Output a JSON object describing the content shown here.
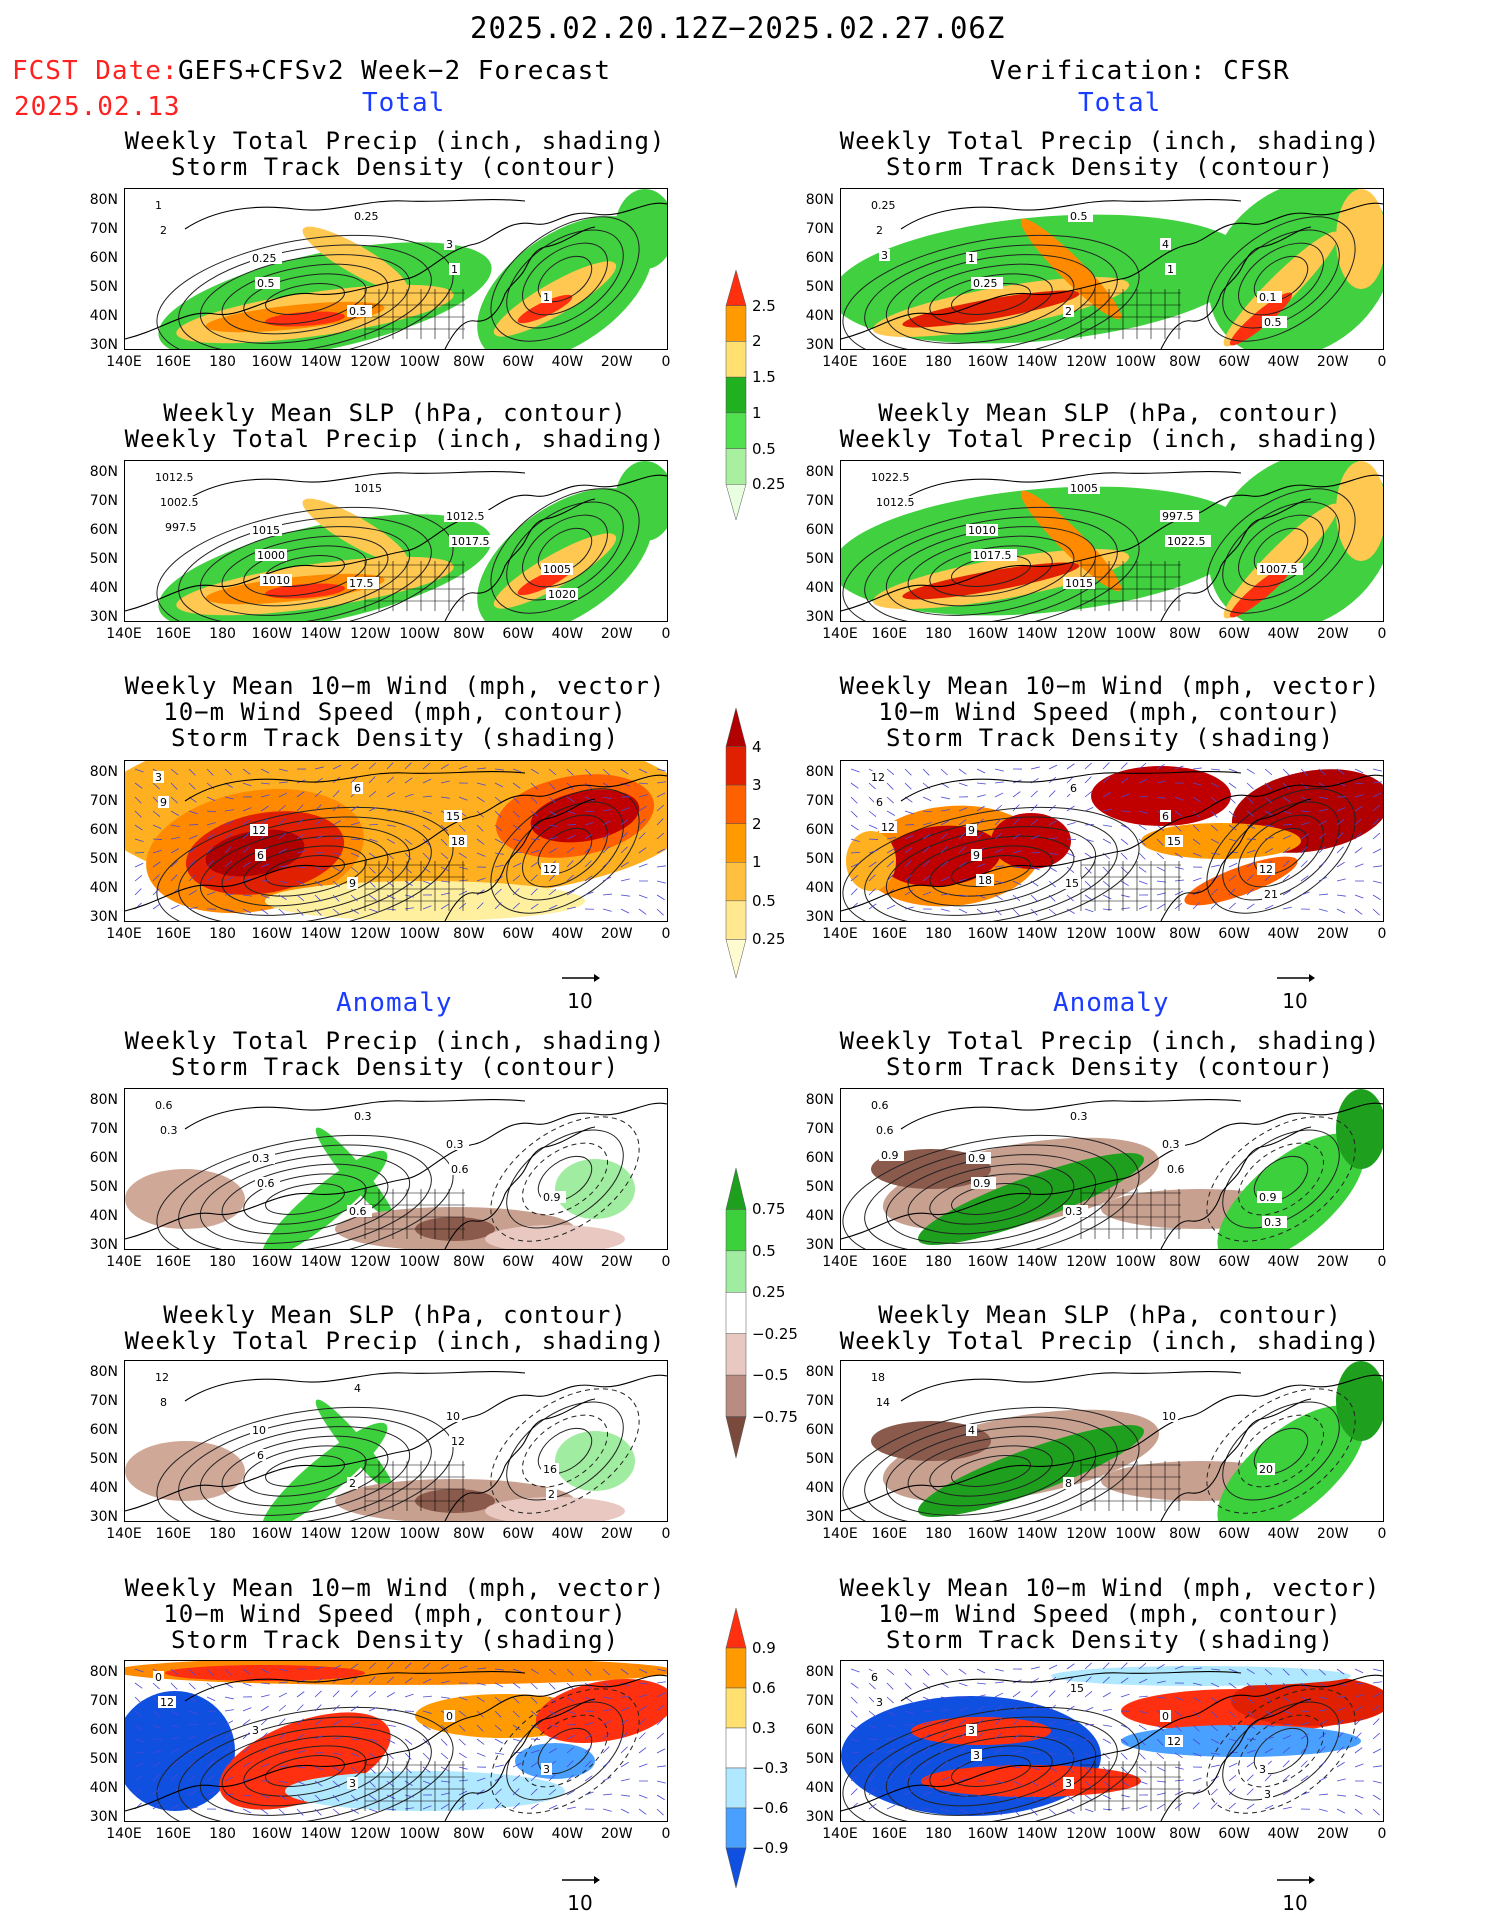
{
  "header": {
    "period": "2025.02.20.12Z−2025.02.27.06Z",
    "fcst_label": "FCST Date:",
    "fcst_source": "GEFS+CFSv2 Week−2 Forecast",
    "fcst_date": "2025.02.13",
    "verification": "Verification: CFSR"
  },
  "sections": {
    "total": "Total",
    "anomaly": "Anomaly"
  },
  "panel_titles": {
    "precip_storm": "Weekly Total Precip (inch, shading)\nStorm Track Density (contour)",
    "slp_precip": "Weekly Mean SLP (hPa, contour)\nWeekly Total Precip (inch, shading)",
    "wind_storm": "Weekly Mean 10−m Wind (mph, vector)\n10−m Wind Speed (mph, contour)\nStorm Track Density (shading)"
  },
  "lat_labels": [
    "80N",
    "70N",
    "60N",
    "50N",
    "40N",
    "30N"
  ],
  "lon_labels": [
    "140E",
    "160E",
    "180",
    "160W",
    "140W",
    "120W",
    "100W",
    "80W",
    "60W",
    "40W",
    "20W",
    "0"
  ],
  "vector_ref": "10",
  "colorbars": {
    "precip_total": {
      "labels": [
        "2.5",
        "2",
        "1.5",
        "1",
        "0.5",
        "0.25"
      ],
      "colors": [
        "#ff3010",
        "#ff9a00",
        "#ffe070",
        "#20b020",
        "#50e050",
        "#a8f0a0",
        "#e8ffe0"
      ]
    },
    "storm_total": {
      "labels": [
        "4",
        "3",
        "2",
        "1",
        "0.5",
        "0.25"
      ],
      "colors": [
        "#b00000",
        "#e02000",
        "#ff6000",
        "#ff9a00",
        "#ffc040",
        "#ffe890",
        "#fffbd0"
      ]
    },
    "precip_anom": {
      "labels": [
        "0.75",
        "0.5",
        "0.25",
        "−0.25",
        "−0.5",
        "−0.75"
      ],
      "colors": [
        "#1ea01e",
        "#3cd03c",
        "#a0eca0",
        "#ffffff",
        "#e8c8c0",
        "#b88c80",
        "#7a4a3c"
      ]
    },
    "storm_anom": {
      "labels": [
        "0.9",
        "0.6",
        "0.3",
        "−0.3",
        "−0.6",
        "−0.9"
      ],
      "colors": [
        "#ff3010",
        "#ff9a00",
        "#ffe070",
        "#ffffff",
        "#b0e8ff",
        "#4aa0ff",
        "#1050e0"
      ]
    }
  },
  "map_labels": {
    "r1_left": [
      "1",
      "0.25",
      "0.5",
      "3",
      "1",
      "2",
      "0.5",
      "0.25",
      "1"
    ],
    "r1_right": [
      "0.25",
      "1",
      "2",
      "4",
      "0.1",
      "2",
      "0.25",
      "0.5",
      "1",
      "0.5",
      "3"
    ],
    "r2_left": [
      "1012.5",
      "1015",
      "17.5",
      "1012.5",
      "1005",
      "1002.5",
      "1000",
      "1015",
      "1017.5",
      "1020",
      "997.5",
      "1010"
    ],
    "r2_right": [
      "1022.5",
      "1010",
      "1015",
      "997.5",
      "1007.5",
      "1012.5",
      "1017.5",
      "1005",
      "1022.5"
    ],
    "r3_left": [
      "3",
      "12",
      "9",
      "15",
      "12",
      "9",
      "6",
      "6",
      "18"
    ],
    "r3_right": [
      "12",
      "9",
      "15",
      "6",
      "12",
      "6",
      "9",
      "6",
      "15",
      "21",
      "12",
      "18"
    ],
    "r4_left": [
      "0.6",
      "0.3",
      "0.6",
      "0.3",
      "0.9",
      "0.3",
      "0.6",
      "0.3",
      "0.6"
    ],
    "r4_right": [
      "0.6",
      "0.9",
      "0.3",
      "0.3",
      "0.9",
      "0.6",
      "0.9",
      "0.3",
      "0.6",
      "0.3",
      "0.9"
    ],
    "r5_left": [
      "12",
      "10",
      "2",
      "10",
      "16",
      "8",
      "6",
      "4",
      "12",
      "2"
    ],
    "r5_right": [
      "18",
      "4",
      "8",
      "10",
      "20",
      "14"
    ],
    "r6_left": [
      "0",
      "3",
      "3",
      "0",
      "3",
      "12"
    ],
    "r6_right": [
      "6",
      "3",
      "3",
      "0",
      "3",
      "3",
      "3",
      "15",
      "12",
      "3"
    ]
  }
}
